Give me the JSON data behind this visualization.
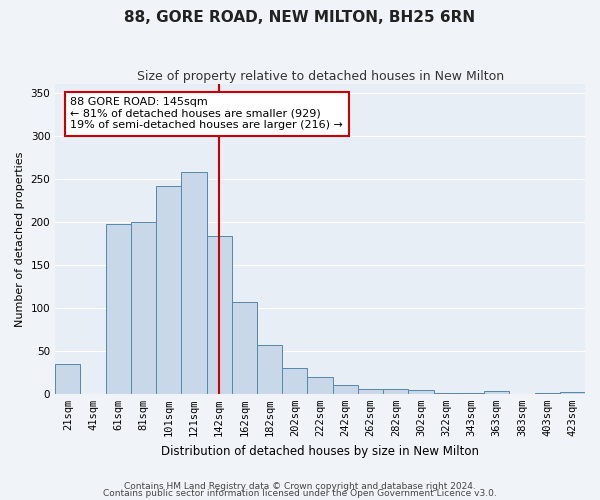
{
  "title": "88, GORE ROAD, NEW MILTON, BH25 6RN",
  "subtitle": "Size of property relative to detached houses in New Milton",
  "xlabel": "Distribution of detached houses by size in New Milton",
  "ylabel": "Number of detached properties",
  "footnote1": "Contains HM Land Registry data © Crown copyright and database right 2024.",
  "footnote2": "Contains public sector information licensed under the Open Government Licence v3.0.",
  "annotation_line1": "88 GORE ROAD: 145sqm",
  "annotation_line2": "← 81% of detached houses are smaller (929)",
  "annotation_line3": "19% of semi-detached houses are larger (216) →",
  "property_line_x": 6,
  "bar_labels": [
    "21sqm",
    "41sqm",
    "61sqm",
    "81sqm",
    "101sqm",
    "121sqm",
    "142sqm",
    "162sqm",
    "182sqm",
    "202sqm",
    "222sqm",
    "242sqm",
    "262sqm",
    "282sqm",
    "302sqm",
    "322sqm",
    "343sqm",
    "363sqm",
    "383sqm",
    "403sqm",
    "423sqm"
  ],
  "bar_values": [
    35,
    0,
    198,
    200,
    242,
    258,
    183,
    107,
    57,
    30,
    19,
    10,
    6,
    6,
    5,
    1,
    1,
    3,
    0,
    1,
    2
  ],
  "bar_color": "#c8d8e8",
  "bar_edge_color": "#5588aa",
  "red_line_color": "#cc0000",
  "box_face_color": "#ffffff",
  "box_edge_color": "#cc0000",
  "fig_bg_color": "#f0f4f8",
  "plot_bg_color": "#e8eef5",
  "ylim": [
    0,
    360
  ],
  "yticks": [
    0,
    50,
    100,
    150,
    200,
    250,
    300,
    350
  ],
  "title_fontsize": 11,
  "subtitle_fontsize": 9,
  "ylabel_fontsize": 8,
  "xlabel_fontsize": 8.5,
  "tick_fontsize": 7.5,
  "annotation_fontsize": 8,
  "footnote_fontsize": 6.5
}
